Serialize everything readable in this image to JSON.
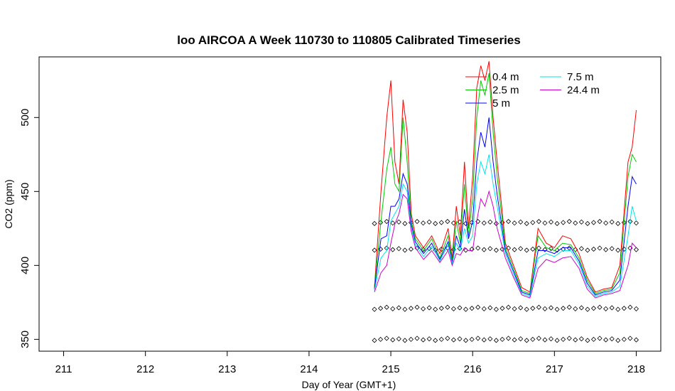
{
  "chart_data": {
    "type": "line",
    "title": "loo AIRCOA A  Week 110730 to 110805  Calibrated Timeseries",
    "xlabel": "Day of Year (GMT+1)",
    "ylabel": "CO2 (ppm)",
    "xlim": [
      210.7,
      218.3
    ],
    "ylim": [
      342,
      541
    ],
    "xticks": [
      211,
      212,
      213,
      214,
      215,
      216,
      217,
      218
    ],
    "yticks": [
      350,
      400,
      450,
      500
    ],
    "grid": false,
    "legend_position": "top-right",
    "series": [
      {
        "name": "0.4 m",
        "color": "#ff0000",
        "x": [
          214.8,
          214.88,
          214.95,
          215.0,
          215.05,
          215.1,
          215.15,
          215.2,
          215.25,
          215.3,
          215.4,
          215.5,
          215.6,
          215.7,
          215.75,
          215.8,
          215.85,
          215.9,
          215.95,
          216.0,
          216.05,
          216.1,
          216.15,
          216.2,
          216.25,
          216.3,
          216.4,
          216.5,
          216.6,
          216.7,
          216.8,
          216.9,
          217.0,
          217.1,
          217.2,
          217.3,
          217.4,
          217.5,
          217.6,
          217.7,
          217.8,
          217.9,
          217.95,
          218.0
        ],
        "y": [
          385,
          450,
          500,
          525,
          470,
          455,
          512,
          490,
          435,
          420,
          412,
          420,
          408,
          425,
          405,
          440,
          420,
          470,
          425,
          460,
          520,
          535,
          525,
          538,
          500,
          470,
          415,
          400,
          385,
          382,
          425,
          415,
          412,
          420,
          418,
          408,
          392,
          382,
          384,
          385,
          400,
          470,
          480,
          505
        ]
      },
      {
        "name": "2.5 m",
        "color": "#00cc00",
        "x": [
          214.8,
          214.88,
          214.95,
          215.0,
          215.05,
          215.1,
          215.15,
          215.2,
          215.25,
          215.3,
          215.4,
          215.5,
          215.6,
          215.7,
          215.75,
          215.8,
          215.85,
          215.9,
          215.95,
          216.0,
          216.05,
          216.1,
          216.15,
          216.2,
          216.25,
          216.3,
          216.4,
          216.5,
          216.6,
          216.7,
          216.8,
          216.9,
          217.0,
          217.1,
          217.2,
          217.3,
          217.4,
          217.5,
          217.6,
          217.7,
          217.8,
          217.9,
          217.95,
          218.0
        ],
        "y": [
          385,
          430,
          465,
          480,
          455,
          450,
          500,
          470,
          430,
          418,
          410,
          418,
          405,
          420,
          403,
          430,
          415,
          455,
          420,
          445,
          500,
          525,
          515,
          530,
          490,
          460,
          412,
          398,
          383,
          381,
          420,
          412,
          410,
          415,
          414,
          405,
          390,
          381,
          383,
          384,
          395,
          460,
          475,
          470
        ]
      },
      {
        "name": "5 m",
        "color": "#0000ff",
        "x": [
          214.8,
          214.88,
          214.95,
          215.0,
          215.05,
          215.1,
          215.15,
          215.2,
          215.25,
          215.3,
          215.4,
          215.5,
          215.6,
          215.7,
          215.75,
          215.8,
          215.85,
          215.9,
          215.95,
          216.0,
          216.05,
          216.1,
          216.15,
          216.2,
          216.25,
          216.3,
          216.4,
          216.5,
          216.6,
          216.7,
          216.8,
          216.9,
          217.0,
          217.1,
          217.2,
          217.3,
          217.4,
          217.5,
          217.6,
          217.7,
          217.8,
          217.9,
          217.95,
          218.0
        ],
        "y": [
          384,
          418,
          420,
          440,
          440,
          445,
          462,
          455,
          428,
          416,
          408,
          415,
          404,
          416,
          402,
          420,
          412,
          438,
          418,
          430,
          470,
          490,
          480,
          500,
          470,
          448,
          410,
          396,
          382,
          380,
          410,
          410,
          408,
          412,
          412,
          403,
          388,
          380,
          382,
          383,
          390,
          440,
          460,
          455
        ]
      },
      {
        "name": "7.5 m",
        "color": "#00e5ee",
        "x": [
          214.8,
          214.88,
          214.95,
          215.0,
          215.05,
          215.1,
          215.15,
          215.2,
          215.25,
          215.3,
          215.4,
          215.5,
          215.6,
          215.7,
          215.75,
          215.8,
          215.85,
          215.9,
          215.95,
          216.0,
          216.05,
          216.1,
          216.15,
          216.2,
          216.25,
          216.3,
          216.4,
          216.5,
          216.6,
          216.7,
          216.8,
          216.9,
          217.0,
          217.1,
          217.2,
          217.3,
          217.4,
          217.5,
          217.6,
          217.7,
          217.8,
          217.9,
          217.95,
          218.0
        ],
        "y": [
          383,
          405,
          410,
          430,
          435,
          440,
          455,
          450,
          425,
          414,
          406,
          413,
          403,
          414,
          401,
          415,
          410,
          425,
          415,
          420,
          455,
          470,
          462,
          475,
          455,
          440,
          408,
          394,
          381,
          379,
          405,
          408,
          406,
          410,
          410,
          401,
          386,
          379,
          381,
          382,
          386,
          420,
          440,
          430
        ]
      },
      {
        "name": "24.4 m",
        "color": "#cc00cc",
        "x": [
          214.8,
          214.88,
          214.95,
          215.0,
          215.05,
          215.1,
          215.15,
          215.2,
          215.25,
          215.3,
          215.4,
          215.5,
          215.6,
          215.7,
          215.75,
          215.8,
          215.85,
          215.9,
          215.95,
          216.0,
          216.05,
          216.1,
          216.15,
          216.2,
          216.25,
          216.3,
          216.4,
          216.5,
          216.6,
          216.7,
          216.8,
          216.9,
          217.0,
          217.1,
          217.2,
          217.3,
          217.4,
          217.5,
          217.6,
          217.7,
          217.8,
          217.9,
          217.95,
          218.0
        ],
        "y": [
          382,
          395,
          400,
          415,
          428,
          435,
          448,
          445,
          423,
          412,
          404,
          410,
          402,
          410,
          400,
          408,
          407,
          412,
          410,
          410,
          430,
          445,
          440,
          450,
          440,
          425,
          405,
          392,
          380,
          378,
          398,
          404,
          402,
          405,
          406,
          398,
          384,
          378,
          380,
          381,
          383,
          400,
          415,
          412
        ]
      }
    ],
    "markers": {
      "symbol": "open-diamond",
      "x_start": 214.8,
      "x_end": 218.0,
      "count": 44,
      "levels": [
        429,
        411,
        371,
        350
      ]
    }
  }
}
